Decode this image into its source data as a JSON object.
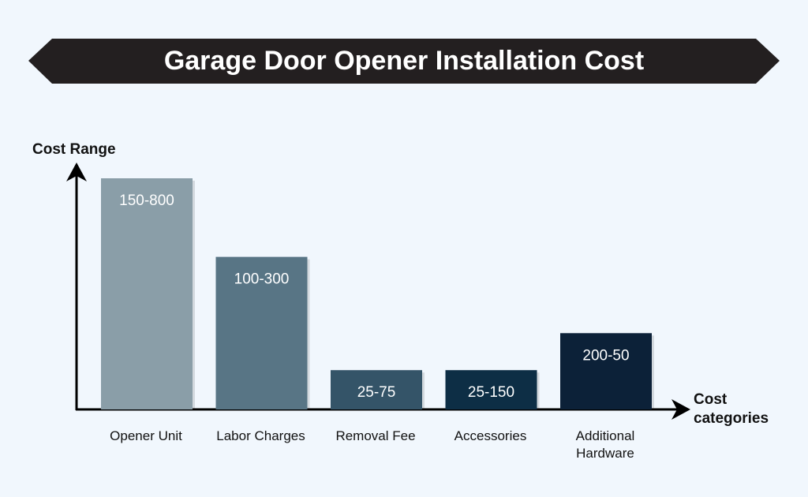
{
  "chart_data": {
    "type": "bar",
    "title": "Garage Door Opener Installation Cost",
    "ylabel": "Cost Range",
    "xlabel": "Cost categories",
    "categories": [
      "Opener Unit",
      "Labor Charges",
      "Removal Fee",
      "Accessories",
      "Additional Hardware"
    ],
    "value_labels": [
      "150-800",
      "100-300",
      "25-75",
      "25-150",
      "200-50"
    ],
    "values": [
      800,
      300,
      75,
      150,
      50
    ],
    "relative_heights": [
      1.0,
      0.66,
      0.17,
      0.17,
      0.33
    ],
    "ylim": [
      0,
      1
    ],
    "grid": false,
    "legend": "none",
    "colors": [
      "#8a9ea8",
      "#587585",
      "#345468",
      "#0d2e45",
      "#0c2138"
    ]
  },
  "colors": {
    "background": "#f1f7fd",
    "banner": "#231f20",
    "axis": "#000000"
  }
}
